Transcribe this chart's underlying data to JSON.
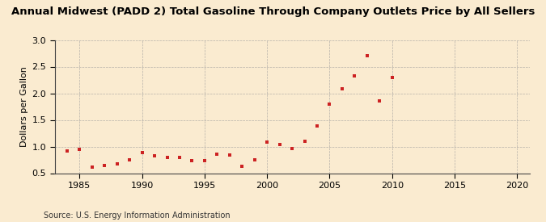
{
  "title": "Annual Midwest (PADD 2) Total Gasoline Through Company Outlets Price by All Sellers",
  "ylabel": "Dollars per Gallon",
  "source": "Source: U.S. Energy Information Administration",
  "background_color": "#faebd0",
  "marker_color": "#cc2222",
  "xlim": [
    1983,
    2021
  ],
  "ylim": [
    0.5,
    3.0
  ],
  "xticks": [
    1985,
    1990,
    1995,
    2000,
    2005,
    2010,
    2015,
    2020
  ],
  "yticks": [
    0.5,
    1.0,
    1.5,
    2.0,
    2.5,
    3.0
  ],
  "years": [
    1984,
    1985,
    1986,
    1987,
    1988,
    1989,
    1990,
    1991,
    1992,
    1993,
    1994,
    1995,
    1996,
    1997,
    1998,
    1999,
    2000,
    2001,
    2002,
    2003,
    2004,
    2005,
    2006,
    2007,
    2008,
    2009,
    2010
  ],
  "prices": [
    0.91,
    0.94,
    0.62,
    0.65,
    0.67,
    0.75,
    0.89,
    0.82,
    0.8,
    0.79,
    0.74,
    0.73,
    0.85,
    0.84,
    0.63,
    0.75,
    1.08,
    1.04,
    0.96,
    1.1,
    1.38,
    1.79,
    2.08,
    2.33,
    2.71,
    1.86,
    2.29
  ],
  "title_fontsize": 9.5,
  "axis_fontsize": 8,
  "source_fontsize": 7
}
